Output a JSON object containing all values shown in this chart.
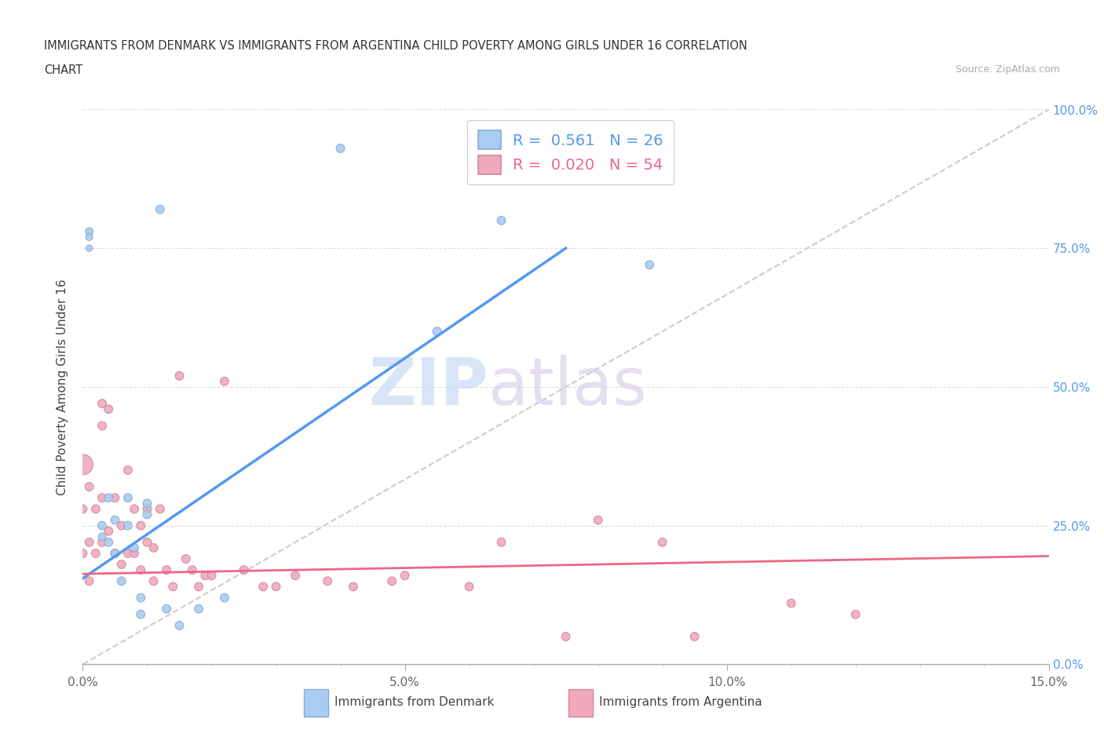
{
  "title_line1": "IMMIGRANTS FROM DENMARK VS IMMIGRANTS FROM ARGENTINA CHILD POVERTY AMONG GIRLS UNDER 16 CORRELATION",
  "title_line2": "CHART",
  "source": "Source: ZipAtlas.com",
  "ylabel": "Child Poverty Among Girls Under 16",
  "xlim": [
    0,
    0.15
  ],
  "ylim": [
    0,
    1.0
  ],
  "xtick_labels": [
    "0.0%",
    "5.0%",
    "10.0%",
    "15.0%"
  ],
  "xtick_vals": [
    0,
    0.05,
    0.1,
    0.15
  ],
  "ytick_vals": [
    0,
    0.25,
    0.5,
    0.75,
    1.0
  ],
  "ytick_labels": [
    "0.0%",
    "25.0%",
    "50.0%",
    "75.0%",
    "100.0%"
  ],
  "denmark_color": "#aaccf0",
  "denmark_edge": "#88aada",
  "argentina_color": "#f0aabb",
  "argentina_edge": "#d08898",
  "trend_denmark_color": "#5599ee",
  "trend_argentina_color": "#ee6688",
  "trend_ref_color": "#cccccc",
  "R_denmark": 0.561,
  "N_denmark": 26,
  "R_argentina": 0.02,
  "N_argentina": 54,
  "watermark_zip": "ZIP",
  "watermark_atlas": "atlas",
  "legend_denmark": "Immigrants from Denmark",
  "legend_argentina": "Immigrants from Argentina",
  "dk_trend_x0": 0.0,
  "dk_trend_y0": 0.155,
  "dk_trend_x1": 0.075,
  "dk_trend_y1": 0.75,
  "ar_trend_x0": 0.0,
  "ar_trend_y0": 0.163,
  "ar_trend_x1": 0.15,
  "ar_trend_y1": 0.195,
  "denmark_x": [
    0.001,
    0.001,
    0.001,
    0.003,
    0.003,
    0.004,
    0.004,
    0.005,
    0.005,
    0.006,
    0.007,
    0.007,
    0.008,
    0.009,
    0.009,
    0.01,
    0.01,
    0.012,
    0.013,
    0.015,
    0.018,
    0.022,
    0.04,
    0.055,
    0.065,
    0.088
  ],
  "denmark_y": [
    0.78,
    0.77,
    0.75,
    0.25,
    0.23,
    0.3,
    0.22,
    0.26,
    0.2,
    0.15,
    0.3,
    0.25,
    0.21,
    0.12,
    0.09,
    0.29,
    0.27,
    0.82,
    0.1,
    0.07,
    0.1,
    0.12,
    0.93,
    0.6,
    0.8,
    0.72
  ],
  "denmark_size": [
    50,
    40,
    35,
    60,
    50,
    60,
    60,
    60,
    60,
    60,
    60,
    60,
    60,
    60,
    60,
    60,
    60,
    60,
    60,
    60,
    60,
    60,
    60,
    60,
    60,
    60
  ],
  "argentina_x": [
    0.0,
    0.0,
    0.0,
    0.001,
    0.001,
    0.001,
    0.002,
    0.002,
    0.003,
    0.003,
    0.003,
    0.003,
    0.004,
    0.004,
    0.005,
    0.005,
    0.006,
    0.006,
    0.007,
    0.007,
    0.008,
    0.008,
    0.009,
    0.009,
    0.01,
    0.01,
    0.011,
    0.011,
    0.012,
    0.013,
    0.014,
    0.015,
    0.016,
    0.017,
    0.018,
    0.019,
    0.02,
    0.022,
    0.025,
    0.028,
    0.03,
    0.033,
    0.038,
    0.042,
    0.048,
    0.05,
    0.06,
    0.065,
    0.075,
    0.08,
    0.09,
    0.095,
    0.11,
    0.12
  ],
  "argentina_y": [
    0.36,
    0.28,
    0.2,
    0.32,
    0.22,
    0.15,
    0.28,
    0.2,
    0.47,
    0.43,
    0.3,
    0.22,
    0.46,
    0.24,
    0.3,
    0.2,
    0.25,
    0.18,
    0.35,
    0.2,
    0.28,
    0.2,
    0.25,
    0.17,
    0.28,
    0.22,
    0.21,
    0.15,
    0.28,
    0.17,
    0.14,
    0.52,
    0.19,
    0.17,
    0.14,
    0.16,
    0.16,
    0.51,
    0.17,
    0.14,
    0.14,
    0.16,
    0.15,
    0.14,
    0.15,
    0.16,
    0.14,
    0.22,
    0.05,
    0.26,
    0.22,
    0.05,
    0.11,
    0.09
  ],
  "argentina_size": [
    350,
    60,
    60,
    60,
    60,
    60,
    60,
    60,
    60,
    60,
    60,
    60,
    60,
    60,
    60,
    60,
    60,
    60,
    60,
    60,
    60,
    60,
    60,
    60,
    60,
    60,
    60,
    60,
    60,
    60,
    60,
    60,
    60,
    60,
    60,
    60,
    60,
    60,
    60,
    60,
    60,
    60,
    60,
    60,
    60,
    60,
    60,
    60,
    60,
    60,
    60,
    60,
    60,
    60
  ]
}
